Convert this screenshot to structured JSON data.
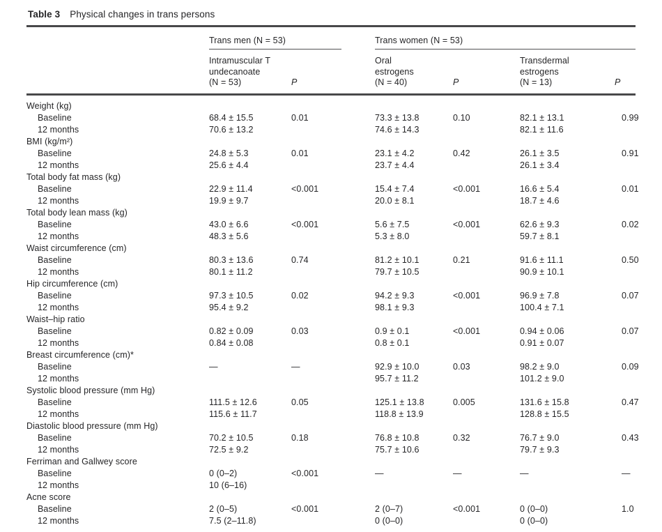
{
  "page": {
    "table_label": "Table 3",
    "title": "Physical changes in trans persons"
  },
  "header": {
    "group1": "Trans men (N = 53)",
    "group2": "Trans women (N = 53)",
    "col1": "Intramuscular T\nundecanoate\n(N = 53)",
    "col2": "Oral\nestrogens\n(N = 40)",
    "col3": "Transdermal\nestrogens\n(N = 13)",
    "p_label": "P"
  },
  "table": {
    "sections": [
      {
        "label": "Weight (kg)",
        "rows": [
          {
            "label": "Baseline",
            "cells": [
              "68.4 ± 15.5",
              "0.01",
              "73.3 ± 13.8",
              "0.10",
              "82.1 ± 13.1",
              "0.99"
            ]
          },
          {
            "label": "12 months",
            "cells": [
              "70.6 ± 13.2",
              "",
              "74.6 ± 14.3",
              "",
              "82.1 ± 11.6",
              ""
            ]
          }
        ]
      },
      {
        "label": "BMI (kg/m²)",
        "rows": [
          {
            "label": "Baseline",
            "cells": [
              "24.8 ± 5.3",
              "0.01",
              "23.1 ± 4.2",
              "0.42",
              "26.1 ± 3.5",
              "0.91"
            ]
          },
          {
            "label": "12 months",
            "cells": [
              "25.6 ± 4.4",
              "",
              "23.7 ± 4.4",
              "",
              "26.1 ± 3.4",
              ""
            ]
          }
        ]
      },
      {
        "label": "Total body fat mass (kg)",
        "rows": [
          {
            "label": "Baseline",
            "cells": [
              "22.9 ± 11.4",
              "<0.001",
              "15.4 ± 7.4",
              "<0.001",
              "16.6 ± 5.4",
              "0.01"
            ]
          },
          {
            "label": "12 months",
            "cells": [
              "19.9 ± 9.7",
              "",
              "20.0 ± 8.1",
              "",
              "18.7 ± 4.6",
              ""
            ]
          }
        ]
      },
      {
        "label": "Total body lean mass (kg)",
        "rows": [
          {
            "label": "Baseline",
            "cells": [
              "43.0 ± 6.6",
              "<0.001",
              "5.6 ± 7.5",
              "<0.001",
              "62.6 ± 9.3",
              "0.02"
            ]
          },
          {
            "label": "12 months",
            "cells": [
              "48.3 ± 5.6",
              "",
              "5.3 ± 8.0",
              "",
              "59.7 ± 8.1",
              ""
            ]
          }
        ]
      },
      {
        "label": "Waist circumference (cm)",
        "rows": [
          {
            "label": "Baseline",
            "cells": [
              "80.3 ± 13.6",
              "0.74",
              "81.2 ± 10.1",
              "0.21",
              "91.6 ± 11.1",
              "0.50"
            ]
          },
          {
            "label": "12 months",
            "cells": [
              "80.1 ± 11.2",
              "",
              "79.7 ± 10.5",
              "",
              "90.9 ± 10.1",
              ""
            ]
          }
        ]
      },
      {
        "label": "Hip circumference (cm)",
        "rows": [
          {
            "label": "Baseline",
            "cells": [
              "97.3 ± 10.5",
              "0.02",
              "94.2 ± 9.3",
              "<0.001",
              "96.9 ± 7.8",
              "0.07"
            ]
          },
          {
            "label": "12 months",
            "cells": [
              "95.4 ± 9.2",
              "",
              "98.1 ± 9.3",
              "",
              "100.4 ± 7.1",
              ""
            ]
          }
        ]
      },
      {
        "label": "Waist–hip ratio",
        "rows": [
          {
            "label": "Baseline",
            "cells": [
              "0.82 ± 0.09",
              "0.03",
              "0.9 ± 0.1",
              "<0.001",
              "0.94 ± 0.06",
              "0.07"
            ]
          },
          {
            "label": "12 months",
            "cells": [
              "0.84 ± 0.08",
              "",
              "0.8 ± 0.1",
              "",
              "0.91 ± 0.07",
              ""
            ]
          }
        ]
      },
      {
        "label": "Breast circumference (cm)*",
        "rows": [
          {
            "label": "Baseline",
            "cells": [
              "—",
              "—",
              "92.9 ± 10.0",
              "0.03",
              "98.2 ± 9.0",
              "0.09"
            ]
          },
          {
            "label": "12 months",
            "cells": [
              "",
              "",
              "95.7 ± 11.2",
              "",
              "101.2 ± 9.0",
              ""
            ]
          }
        ]
      },
      {
        "label": "Systolic blood pressure (mm Hg)",
        "rows": [
          {
            "label": "Baseline",
            "cells": [
              "111.5 ± 12.6",
              "0.05",
              "125.1 ± 13.8",
              "0.005",
              "131.6 ± 15.8",
              "0.47"
            ]
          },
          {
            "label": "12 months",
            "cells": [
              "115.6 ± 11.7",
              "",
              "118.8 ± 13.9",
              "",
              "128.8 ± 15.5",
              ""
            ]
          }
        ]
      },
      {
        "label": "Diastolic blood pressure (mm Hg)",
        "rows": [
          {
            "label": "Baseline",
            "cells": [
              "70.2 ± 10.5",
              "0.18",
              "76.8 ± 10.8",
              "0.32",
              "76.7 ± 9.0",
              "0.43"
            ]
          },
          {
            "label": "12 months",
            "cells": [
              "72.5 ± 9.2",
              "",
              "75.7 ± 10.6",
              "",
              "79.7 ± 9.3",
              ""
            ]
          }
        ]
      },
      {
        "label": "Ferriman and Gallwey score",
        "rows": [
          {
            "label": "Baseline",
            "cells": [
              "0 (0–2)",
              "<0.001",
              "—",
              "—",
              "—",
              "—"
            ]
          },
          {
            "label": "12 months",
            "cells": [
              "10 (6–16)",
              "",
              "",
              "",
              "",
              ""
            ]
          }
        ]
      },
      {
        "label": "Acne score",
        "rows": [
          {
            "label": "Baseline",
            "cells": [
              "2 (0–5)",
              "<0.001",
              "2 (0–7)",
              "<0.001",
              "0 (0–0)",
              "1.0"
            ]
          },
          {
            "label": "12 months",
            "cells": [
              "7.5 (2–11.8)",
              "",
              "0 (0–0)",
              "",
              "0 (0–0)",
              ""
            ]
          }
        ]
      }
    ]
  }
}
